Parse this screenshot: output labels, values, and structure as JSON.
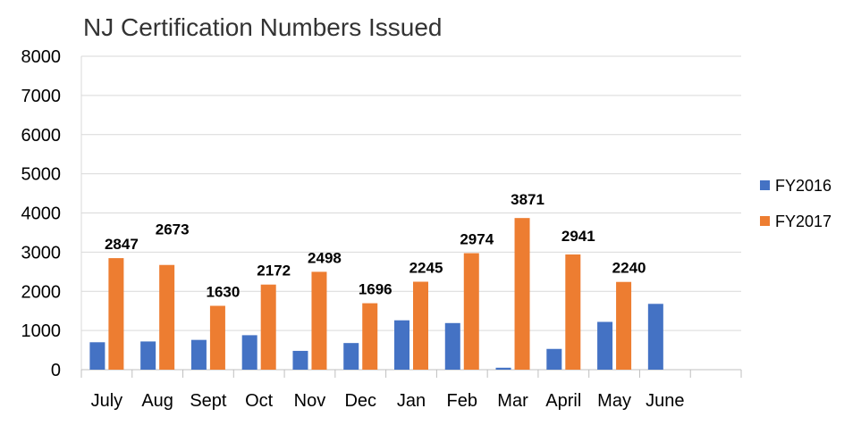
{
  "chart_data": {
    "type": "bar",
    "title": "NJ Certification Numbers Issued",
    "xlabel": "",
    "ylabel": "",
    "ylim": [
      0,
      8000
    ],
    "yticks": [
      0,
      1000,
      2000,
      3000,
      4000,
      5000,
      6000,
      7000,
      8000
    ],
    "grid": true,
    "legend_position": "right",
    "categories": [
      "July",
      "Aug",
      "Sept",
      "Oct",
      "Nov",
      "Dec",
      "Jan",
      "Feb",
      "Mar",
      "April",
      "May",
      "June"
    ],
    "series": [
      {
        "name": "FY2016",
        "color": "#4472C4",
        "values": [
          700,
          720,
          760,
          880,
          480,
          680,
          1260,
          1190,
          50,
          530,
          1220,
          1680
        ]
      },
      {
        "name": "FY2017",
        "color": "#ED7D31",
        "values": [
          2847,
          2673,
          1630,
          2172,
          2498,
          1696,
          2245,
          2974,
          3871,
          2941,
          2240,
          null
        ]
      }
    ],
    "data_labels": [
      {
        "category": "July",
        "series": "FY2017",
        "text": "2847"
      },
      {
        "category": "Aug",
        "series": "FY2017",
        "text": "2673"
      },
      {
        "category": "Sept",
        "series": "FY2017",
        "text": "1630"
      },
      {
        "category": "Oct",
        "series": "FY2017",
        "text": "2172"
      },
      {
        "category": "Nov",
        "series": "FY2017",
        "text": "2498"
      },
      {
        "category": "Dec",
        "series": "FY2017",
        "text": "1696"
      },
      {
        "category": "Jan",
        "series": "FY2017",
        "text": "2245"
      },
      {
        "category": "Feb",
        "series": "FY2017",
        "text": "2974"
      },
      {
        "category": "Mar",
        "series": "FY2017",
        "text": "3871"
      },
      {
        "category": "April",
        "series": "FY2017",
        "text": "2941"
      },
      {
        "category": "May",
        "series": "FY2017",
        "text": "2240"
      }
    ]
  }
}
